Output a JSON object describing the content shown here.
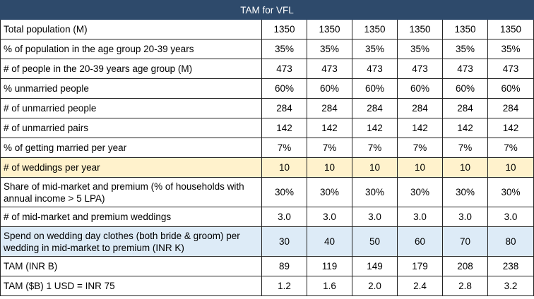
{
  "table": {
    "title": "TAM for VFL",
    "rows": [
      {
        "label": "Total population (M)",
        "values": [
          "1350",
          "1350",
          "1350",
          "1350",
          "1350",
          "1350"
        ],
        "highlight": ""
      },
      {
        "label": "% of population in the age group 20-39 years",
        "values": [
          "35%",
          "35%",
          "35%",
          "35%",
          "35%",
          "35%"
        ],
        "highlight": ""
      },
      {
        "label": "# of people in the 20-39 years age group (M)",
        "values": [
          "473",
          "473",
          "473",
          "473",
          "473",
          "473"
        ],
        "highlight": ""
      },
      {
        "label": "% unmarried people",
        "values": [
          "60%",
          "60%",
          "60%",
          "60%",
          "60%",
          "60%"
        ],
        "highlight": ""
      },
      {
        "label": "# of unmarried people",
        "values": [
          "284",
          "284",
          "284",
          "284",
          "284",
          "284"
        ],
        "highlight": ""
      },
      {
        "label": "# of unmarried pairs",
        "values": [
          "142",
          "142",
          "142",
          "142",
          "142",
          "142"
        ],
        "highlight": ""
      },
      {
        "label": "% of getting married per year",
        "values": [
          "7%",
          "7%",
          "7%",
          "7%",
          "7%",
          "7%"
        ],
        "highlight": ""
      },
      {
        "label": "# of weddings per year",
        "values": [
          "10",
          "10",
          "10",
          "10",
          "10",
          "10"
        ],
        "highlight": "yellow"
      },
      {
        "label": "Share of mid-market and premium (% of households with annual income > 5 LPA)",
        "values": [
          "30%",
          "30%",
          "30%",
          "30%",
          "30%",
          "30%"
        ],
        "highlight": ""
      },
      {
        "label": "# of mid-market and premium weddings",
        "values": [
          "3.0",
          "3.0",
          "3.0",
          "3.0",
          "3.0",
          "3.0"
        ],
        "highlight": ""
      },
      {
        "label": "Spend on wedding day clothes (both bride & groom) per wedding in mid-market to premium (INR K)",
        "values": [
          "30",
          "40",
          "50",
          "60",
          "70",
          "80"
        ],
        "highlight": "blue"
      },
      {
        "label": "TAM (INR B)",
        "values": [
          "89",
          "119",
          "149",
          "179",
          "208",
          "238"
        ],
        "highlight": ""
      },
      {
        "label": "TAM ($B) 1 USD = INR 75",
        "values": [
          "1.2",
          "1.6",
          "2.0",
          "2.4",
          "2.8",
          "3.2"
        ],
        "highlight": ""
      }
    ]
  },
  "colors": {
    "title_background": "#2e4a6b",
    "title_text": "#ffffff",
    "highlight_yellow": "#fff2cc",
    "highlight_blue": "#ddebf7"
  }
}
